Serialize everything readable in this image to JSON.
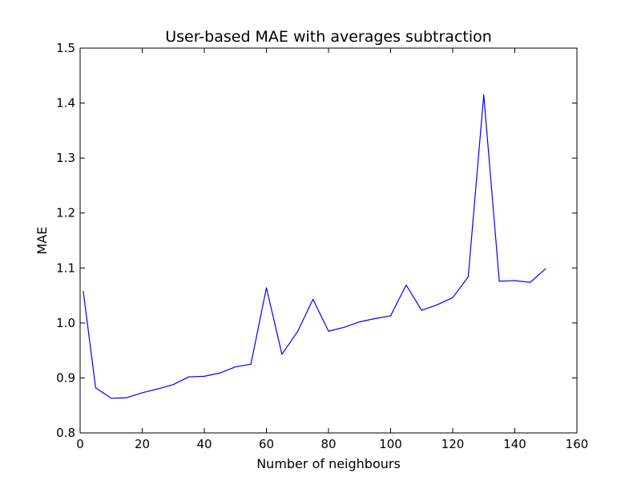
{
  "chart_data": {
    "type": "line",
    "title": "User-based MAE with averages subtraction",
    "xlabel": "Number of neighbours",
    "ylabel": "MAE",
    "xlim": [
      0,
      160
    ],
    "ylim": [
      0.8,
      1.5
    ],
    "xticks": [
      "0",
      "20",
      "40",
      "60",
      "80",
      "100",
      "120",
      "140",
      "160"
    ],
    "yticks": [
      "0.8",
      "0.9",
      "1.0",
      "1.1",
      "1.2",
      "1.3",
      "1.4",
      "1.5"
    ],
    "grid": false,
    "line_color": "#0000ff",
    "series": [
      {
        "x": [
          1,
          5,
          10,
          15,
          20,
          25,
          30,
          35,
          40,
          45,
          50,
          55,
          60,
          65,
          70,
          75,
          80,
          85,
          90,
          95,
          100,
          105,
          110,
          115,
          120,
          125,
          130,
          135,
          140,
          145,
          150
        ],
        "y": [
          1.058,
          0.882,
          0.863,
          0.864,
          0.873,
          0.88,
          0.888,
          0.902,
          0.903,
          0.909,
          0.92,
          0.925,
          1.064,
          0.943,
          0.984,
          1.043,
          0.985,
          0.992,
          1.002,
          1.008,
          1.013,
          1.069,
          1.023,
          1.033,
          1.046,
          1.084,
          1.415,
          1.076,
          1.077,
          1.074,
          1.099
        ]
      }
    ]
  }
}
